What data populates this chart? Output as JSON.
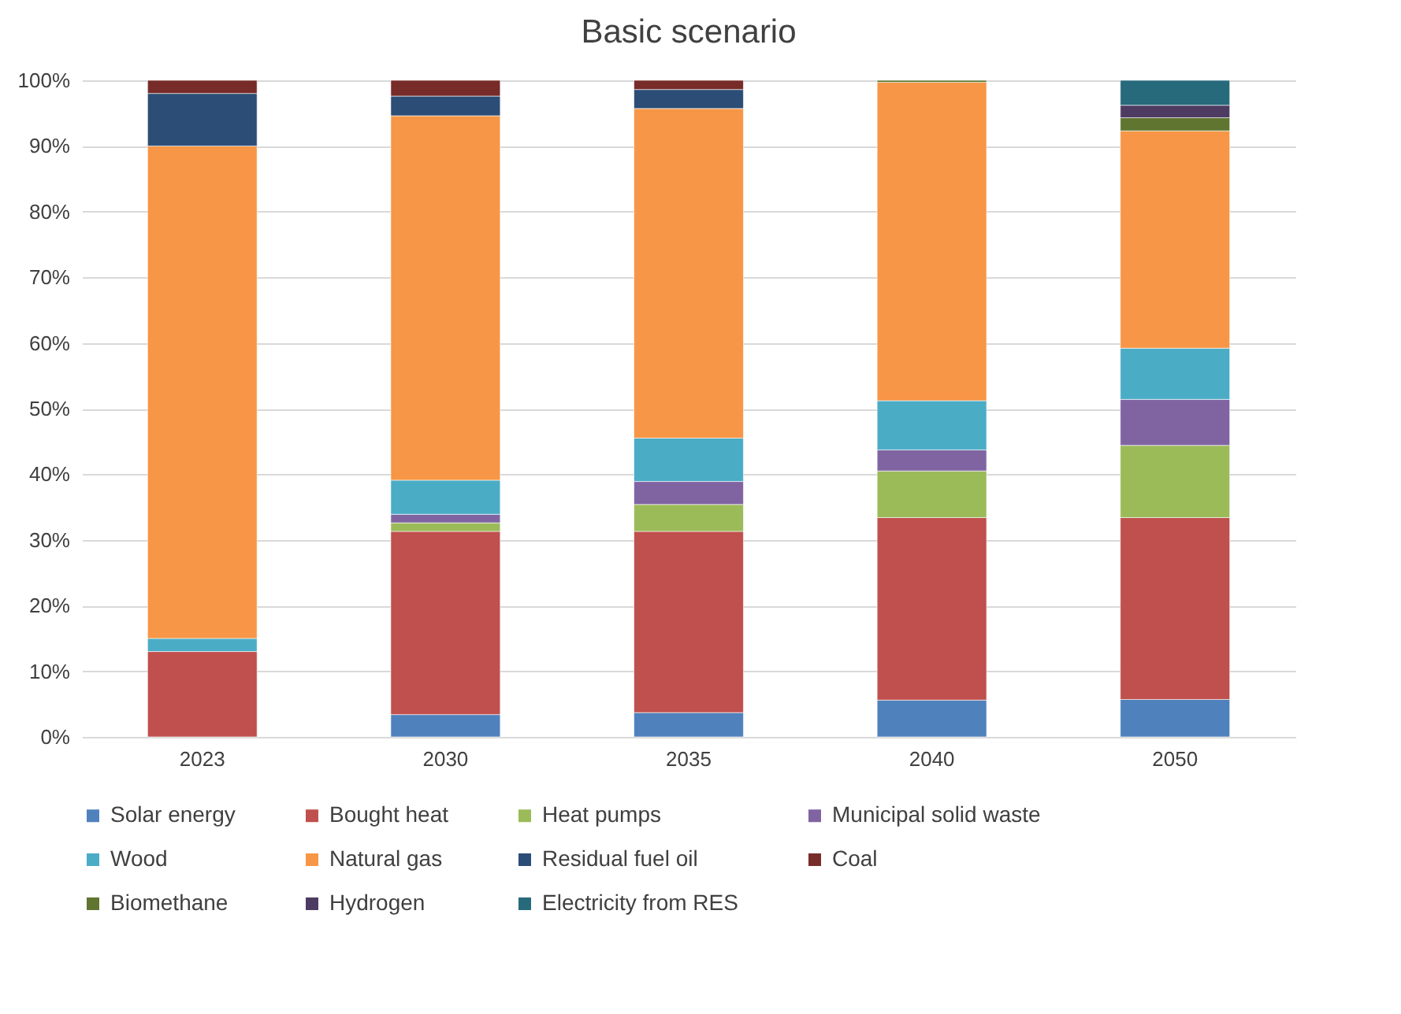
{
  "chart_data": {
    "type": "bar",
    "title": "Basic scenario",
    "stacked": true,
    "categories": [
      "2023",
      "2030",
      "2035",
      "2040",
      "2050"
    ],
    "series": [
      {
        "name": "Solar energy",
        "color": "#4f81bd",
        "values": [
          null,
          3.4,
          3.7,
          5.6,
          5.7
        ]
      },
      {
        "name": "Bought heat",
        "color": "#c0504d",
        "values": [
          13,
          27.9,
          27.6,
          27.8,
          27.7
        ]
      },
      {
        "name": "Heat pumps",
        "color": "#9bbb59",
        "values": [
          null,
          1.3,
          4.1,
          7.1,
          11
        ]
      },
      {
        "name": "Municipal solid waste",
        "color": "#8064a2",
        "values": [
          null,
          1.3,
          3.5,
          3.2,
          7
        ]
      },
      {
        "name": "Wood",
        "color": "#4bacc6",
        "values": [
          2,
          5.2,
          6.6,
          7.5,
          7.8
        ]
      },
      {
        "name": "Natural gas",
        "color": "#f79646",
        "values": [
          75,
          55.5,
          50.2,
          48.5,
          33.1
        ]
      },
      {
        "name": "Residual fuel oil",
        "color": "#2c4d75",
        "values": [
          8,
          3,
          2.9,
          null,
          null
        ]
      },
      {
        "name": "Coal",
        "color": "#772c2a",
        "values": [
          2,
          2.4,
          1.4,
          null,
          null
        ]
      },
      {
        "name": "Biomethane",
        "color": "#5f7530",
        "values": [
          null,
          null,
          null,
          0.3,
          2
        ]
      },
      {
        "name": "Hydrogen",
        "color": "#4d3b62",
        "values": [
          null,
          null,
          null,
          null,
          1.9
        ]
      },
      {
        "name": "Electricity from RES",
        "color": "#276a7c",
        "values": [
          null,
          null,
          null,
          null,
          3.8
        ]
      }
    ],
    "ylim": [
      0,
      100
    ],
    "yticks": [
      {
        "value": 0,
        "label": "0%"
      },
      {
        "value": 10,
        "label": "10%"
      },
      {
        "value": 20,
        "label": "20%"
      },
      {
        "value": 30,
        "label": "30%"
      },
      {
        "value": 40,
        "label": "40%"
      },
      {
        "value": 50,
        "label": "50%"
      },
      {
        "value": 60,
        "label": "60%"
      },
      {
        "value": 70,
        "label": "70%"
      },
      {
        "value": 80,
        "label": "80%"
      },
      {
        "value": 90,
        "label": "90%"
      },
      {
        "value": 100,
        "label": "100%"
      }
    ],
    "grid": "y",
    "legend": "bottom"
  }
}
